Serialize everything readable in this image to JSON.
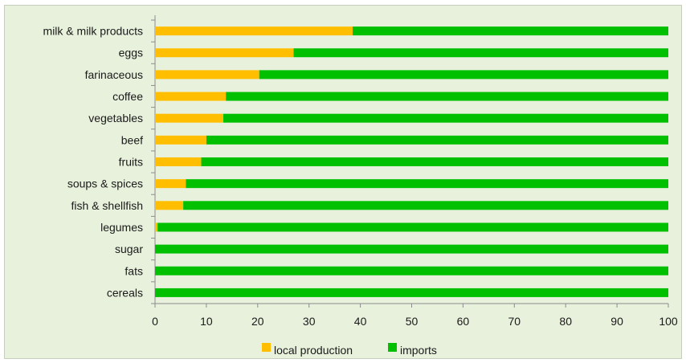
{
  "chart_data": {
    "type": "bar",
    "orientation": "horizontal",
    "stacked": true,
    "categories": [
      "milk & milk products",
      "eggs",
      "farinaceous",
      "coffee",
      "vegetables",
      "beef",
      "fruits",
      "soups & spices",
      "fish & shellfish",
      "legumes",
      "sugar",
      "fats",
      "cereals"
    ],
    "series": [
      {
        "name": "local production",
        "color": "#ffbf00",
        "values": [
          38.5,
          27,
          20.3,
          13.8,
          13.3,
          10,
          9,
          6,
          5.5,
          0.5,
          0,
          0,
          0
        ]
      },
      {
        "name": "imports",
        "color": "#00c000",
        "values": [
          61.5,
          73,
          79.7,
          86.2,
          86.7,
          90,
          91,
          94,
          94.5,
          99.5,
          100,
          100,
          100
        ]
      }
    ],
    "xlim": [
      0,
      100
    ],
    "xticks": [
      "0",
      "10",
      "20",
      "30",
      "40",
      "50",
      "60",
      "70",
      "80",
      "90",
      "100"
    ],
    "grid": false,
    "legend_position": "bottom",
    "background": "#e8f1dc"
  }
}
